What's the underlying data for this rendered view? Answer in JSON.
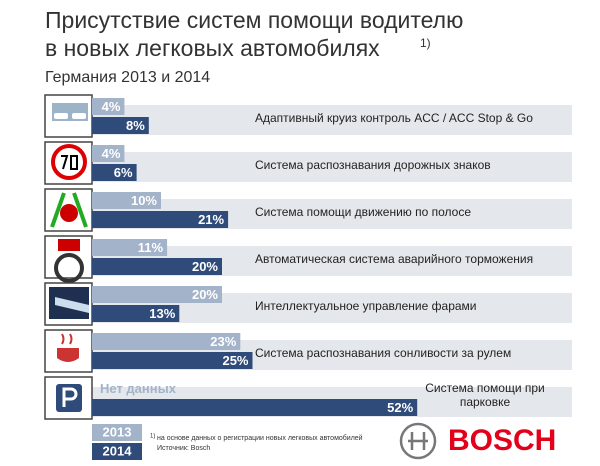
{
  "chart_data": {
    "type": "bar",
    "title_lines": [
      "Присутствие систем помощи водителю",
      "в новых легковых автомобилях"
    ],
    "title_note": "1)",
    "subtitle": "Германия 2013 и 2014",
    "categories": [
      "Адаптивный круиз контроль ACC / ACC Stop & Go",
      "Система распознавания дорожных знаков",
      "Система помощи движению по полосе",
      "Автоматическая система аварийного торможения",
      "Интеллектуальное управление фарами",
      "Система распознавания сонливости за рулем",
      "Система помощи при парковке"
    ],
    "series": [
      {
        "name": "2013",
        "color": "#a3b3c9",
        "values": [
          4,
          4,
          10,
          11,
          20,
          23,
          null
        ],
        "value_labels": [
          "4%",
          "4%",
          "10%",
          "11%",
          "20%",
          "23%",
          "Нет данных"
        ]
      },
      {
        "name": "2014",
        "color": "#2f4b7a",
        "values": [
          8,
          6,
          21,
          20,
          13,
          25,
          52
        ],
        "value_labels": [
          "8%",
          "6%",
          "21%",
          "20%",
          "13%",
          "25%",
          "52%"
        ]
      }
    ],
    "footnote": "на основе данных о регистрации новых легковых автомобилей",
    "footnote_mark": "1)",
    "source": "Источник: Bosch",
    "logo": "BOSCH"
  }
}
